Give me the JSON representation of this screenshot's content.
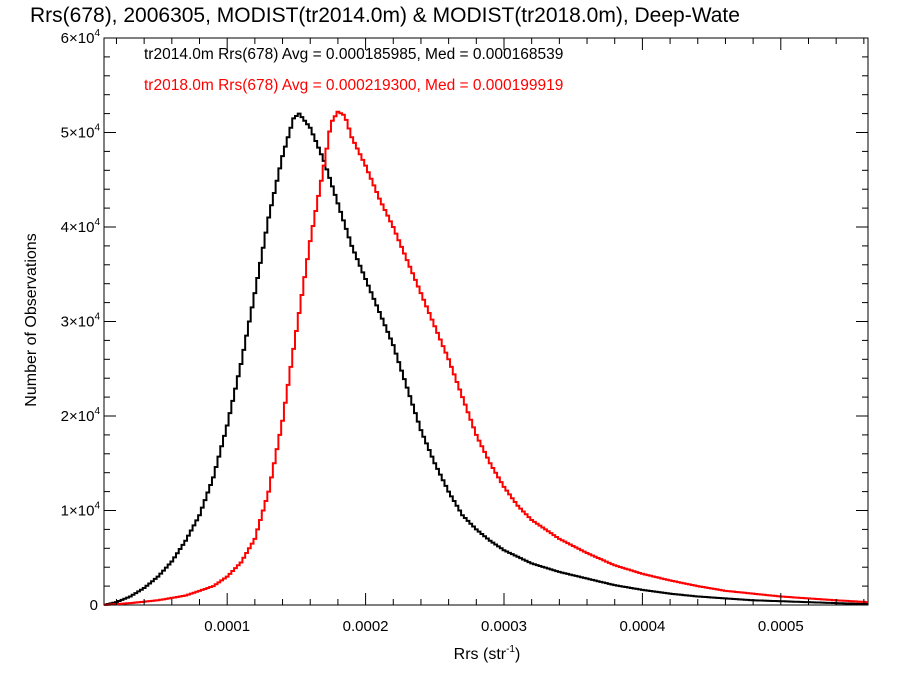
{
  "chart_data": {
    "type": "step-histogram",
    "title": "Rrs(678), 2006305, MODIST(tr2014.0m) & MODIST(tr2018.0m), Deep-Wate",
    "xlabel_main": "Rrs (str",
    "xlabel_sup": "-1",
    "xlabel_end": ")",
    "ylabel": "Number of Observations",
    "xlim": [
      1.1e-05,
      0.000563
    ],
    "ylim": [
      0,
      60000
    ],
    "x_ticks": [
      {
        "value": 0.0001,
        "label": "0.0001"
      },
      {
        "value": 0.0002,
        "label": "0.0002"
      },
      {
        "value": 0.0003,
        "label": "0.0003"
      },
      {
        "value": 0.0004,
        "label": "0.0004"
      },
      {
        "value": 0.0005,
        "label": "0.0005"
      }
    ],
    "y_ticks": [
      {
        "value": 0,
        "mant": "0",
        "exp": ""
      },
      {
        "value": 10000,
        "mant": "1×10",
        "exp": "4"
      },
      {
        "value": 20000,
        "mant": "2×10",
        "exp": "4"
      },
      {
        "value": 30000,
        "mant": "3×10",
        "exp": "4"
      },
      {
        "value": 40000,
        "mant": "4×10",
        "exp": "4"
      },
      {
        "value": 50000,
        "mant": "5×10",
        "exp": "4"
      },
      {
        "value": 60000,
        "mant": "6×10",
        "exp": "4"
      }
    ],
    "annotations": [
      {
        "text": "tr2014.0m Rrs(678) Avg = 0.000185985, Med = 0.000168539",
        "color": "#000000"
      },
      {
        "text": "tr2018.0m Rrs(678) Avg = 0.000219300, Med = 0.000199919",
        "color": "#ff0000"
      }
    ],
    "series": [
      {
        "color": "#000000",
        "points": [
          [
            1.1e-05,
            0
          ],
          [
            2e-05,
            300
          ],
          [
            3e-05,
            900
          ],
          [
            4e-05,
            1800
          ],
          [
            5e-05,
            3000
          ],
          [
            6e-05,
            4600
          ],
          [
            7e-05,
            6800
          ],
          [
            8e-05,
            9500
          ],
          [
            9e-05,
            13500
          ],
          [
            0.0001,
            19000
          ],
          [
            0.00011,
            25500
          ],
          [
            0.00012,
            33000
          ],
          [
            0.00013,
            41000
          ],
          [
            0.00014,
            47500
          ],
          [
            0.000148,
            51500
          ],
          [
            0.000152,
            52000
          ],
          [
            0.00016,
            50500
          ],
          [
            0.00017,
            47000
          ],
          [
            0.00018,
            42500
          ],
          [
            0.00019,
            38000
          ],
          [
            0.0002,
            34500
          ],
          [
            0.00021,
            31000
          ],
          [
            0.00022,
            27500
          ],
          [
            0.00023,
            23000
          ],
          [
            0.00024,
            18500
          ],
          [
            0.00025,
            15000
          ],
          [
            0.00026,
            12000
          ],
          [
            0.00027,
            9500
          ],
          [
            0.00028,
            8000
          ],
          [
            0.00029,
            6800
          ],
          [
            0.0003,
            5800
          ],
          [
            0.00032,
            4400
          ],
          [
            0.00034,
            3500
          ],
          [
            0.00036,
            2800
          ],
          [
            0.00038,
            2100
          ],
          [
            0.0004,
            1600
          ],
          [
            0.00042,
            1200
          ],
          [
            0.00044,
            900
          ],
          [
            0.00046,
            700
          ],
          [
            0.00048,
            500
          ],
          [
            0.0005,
            400
          ],
          [
            0.00052,
            300
          ],
          [
            0.00054,
            200
          ],
          [
            0.000563,
            100
          ]
        ]
      },
      {
        "color": "#ff0000",
        "points": [
          [
            1.1e-05,
            0
          ],
          [
            3e-05,
            200
          ],
          [
            5e-05,
            500
          ],
          [
            7e-05,
            1000
          ],
          [
            9e-05,
            2000
          ],
          [
            0.0001,
            3000
          ],
          [
            0.00011,
            4500
          ],
          [
            0.00012,
            7000
          ],
          [
            0.00013,
            12000
          ],
          [
            0.00014,
            19500
          ],
          [
            0.00015,
            29000
          ],
          [
            0.00016,
            38500
          ],
          [
            0.00017,
            46500
          ],
          [
            0.000175,
            51000
          ],
          [
            0.00018,
            52200
          ],
          [
            0.000185,
            51800
          ],
          [
            0.00019,
            49500
          ],
          [
            0.0002,
            46500
          ],
          [
            0.00021,
            43000
          ],
          [
            0.00022,
            40000
          ],
          [
            0.00023,
            36500
          ],
          [
            0.00024,
            33000
          ],
          [
            0.00025,
            29500
          ],
          [
            0.00026,
            26000
          ],
          [
            0.00027,
            22000
          ],
          [
            0.00028,
            18000
          ],
          [
            0.00029,
            15000
          ],
          [
            0.0003,
            12500
          ],
          [
            0.00031,
            10500
          ],
          [
            0.00032,
            9000
          ],
          [
            0.00034,
            7000
          ],
          [
            0.00036,
            5500
          ],
          [
            0.00038,
            4200
          ],
          [
            0.0004,
            3300
          ],
          [
            0.00042,
            2600
          ],
          [
            0.00044,
            2000
          ],
          [
            0.00046,
            1500
          ],
          [
            0.00048,
            1200
          ],
          [
            0.0005,
            900
          ],
          [
            0.00052,
            700
          ],
          [
            0.00054,
            500
          ],
          [
            0.000563,
            300
          ]
        ]
      }
    ]
  }
}
